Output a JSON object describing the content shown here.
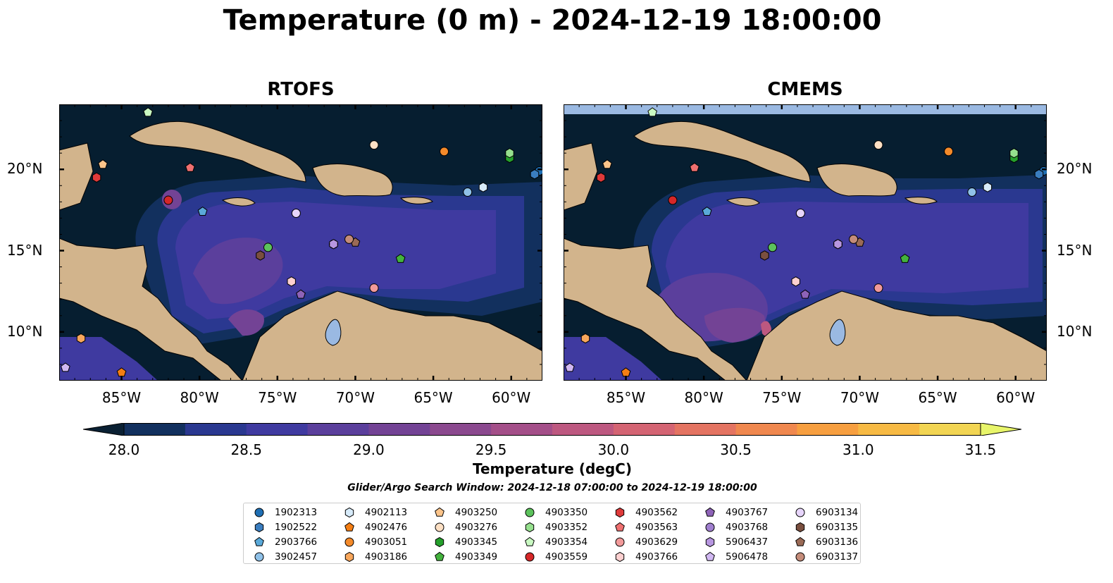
{
  "title": "Temperature (0 m) - 2024-12-19 18:00:00",
  "panels": [
    {
      "title": "RTOFS"
    },
    {
      "title": "CMEMS"
    }
  ],
  "map_extent": {
    "lon": [
      -89,
      -58
    ],
    "lat": [
      7,
      24
    ]
  },
  "lon_ticks": [
    {
      "value": -85,
      "label": "85°W"
    },
    {
      "value": -80,
      "label": "80°W"
    },
    {
      "value": -75,
      "label": "75°W"
    },
    {
      "value": -70,
      "label": "70°W"
    },
    {
      "value": -65,
      "label": "65°W"
    },
    {
      "value": -60,
      "label": "60°W"
    }
  ],
  "lat_ticks": [
    {
      "value": 10,
      "label": "10°N"
    },
    {
      "value": 15,
      "label": "15°N"
    },
    {
      "value": 20,
      "label": "20°N"
    }
  ],
  "colorbar": {
    "title": "Temperature (degC)",
    "range": [
      28.0,
      31.5
    ],
    "tick_labels": [
      "28.0",
      "28.5",
      "29.0",
      "29.5",
      "30.0",
      "30.5",
      "31.0",
      "31.5"
    ],
    "colors": [
      "#0a2033",
      "#12305e",
      "#2a3890",
      "#3f3aa0",
      "#5b3f9c",
      "#734395",
      "#8b498f",
      "#a44f89",
      "#bd5880",
      "#d46473",
      "#e47462",
      "#f0884f",
      "#f79f40",
      "#f7ba44",
      "#f2d553",
      "#e8f56a"
    ]
  },
  "search_window": "Glider/Argo Search Window: 2024-12-18 07:00:00 to 2024-12-19 18:00:00",
  "colors": {
    "ocean_dark": "#061e30",
    "land": "#d2b48c",
    "water_features": "#9ab9e2",
    "border": "#000000"
  },
  "floats": [
    {
      "id": "1902313",
      "shape": "circle",
      "color": "#1f6fb4",
      "lon": -58.2,
      "lat": 19.9
    },
    {
      "id": "1902522",
      "shape": "hexagon",
      "color": "#3a7dbf",
      "lon": -58.5,
      "lat": 19.7
    },
    {
      "id": "2903766",
      "shape": "pentagon",
      "color": "#5aa9d9",
      "lon": -79.8,
      "lat": 17.4
    },
    {
      "id": "3902457",
      "shape": "circle",
      "color": "#8fc1e8",
      "lon": -62.8,
      "lat": 18.6
    },
    {
      "id": "4902113",
      "shape": "hexagon",
      "color": "#d7ebfa",
      "lon": -61.8,
      "lat": 18.9
    },
    {
      "id": "4902476",
      "shape": "pentagon",
      "color": "#f47e14",
      "lon": -85.0,
      "lat": 7.5
    },
    {
      "id": "4903051",
      "shape": "circle",
      "color": "#f48a2a",
      "lon": -64.3,
      "lat": 21.1
    },
    {
      "id": "4903186",
      "shape": "hexagon",
      "color": "#f8a75c",
      "lon": -87.6,
      "lat": 9.6
    },
    {
      "id": "4903250",
      "shape": "pentagon",
      "color": "#fcc48a",
      "lon": -86.2,
      "lat": 20.3
    },
    {
      "id": "4903276",
      "shape": "circle",
      "color": "#fde0c4",
      "lon": -68.8,
      "lat": 21.5
    },
    {
      "id": "4903345",
      "shape": "hexagon",
      "color": "#25a02c",
      "lon": -60.1,
      "lat": 20.7
    },
    {
      "id": "4903349",
      "shape": "pentagon",
      "color": "#43b23d",
      "lon": -67.1,
      "lat": 14.5
    },
    {
      "id": "4903350",
      "shape": "circle",
      "color": "#5cc25c",
      "lon": -75.6,
      "lat": 15.2
    },
    {
      "id": "4903352",
      "shape": "hexagon",
      "color": "#96e08e",
      "lon": -60.1,
      "lat": 21.0
    },
    {
      "id": "4903354",
      "shape": "pentagon",
      "color": "#c9f9c2",
      "lon": -83.3,
      "lat": 23.5
    },
    {
      "id": "4903559",
      "shape": "circle",
      "color": "#d62728",
      "lon": -82.0,
      "lat": 18.1
    },
    {
      "id": "4903562",
      "shape": "hexagon",
      "color": "#df3a3a",
      "lon": -86.6,
      "lat": 19.5
    },
    {
      "id": "4903563",
      "shape": "pentagon",
      "color": "#ef7070",
      "lon": -80.6,
      "lat": 20.1
    },
    {
      "id": "4903629",
      "shape": "circle",
      "color": "#f29a9a",
      "lon": -68.8,
      "lat": 12.7
    },
    {
      "id": "4903766",
      "shape": "hexagon",
      "color": "#fdd0d0",
      "lon": -74.1,
      "lat": 13.1
    },
    {
      "id": "4903767",
      "shape": "pentagon",
      "color": "#8e63b8",
      "lon": -73.5,
      "lat": 12.3
    },
    {
      "id": "4903768",
      "shape": "circle",
      "color": "#a07fcf",
      "lon": -71.4,
      "lat": 15.4
    },
    {
      "id": "5906437",
      "shape": "hexagon",
      "color": "#b796e0",
      "lon": -71.4,
      "lat": 15.4
    },
    {
      "id": "5906478",
      "shape": "pentagon",
      "color": "#d1b8f2",
      "lon": -88.6,
      "lat": 7.8
    },
    {
      "id": "6903134",
      "shape": "circle",
      "color": "#e7d5fb",
      "lon": -73.8,
      "lat": 17.3
    },
    {
      "id": "6903135",
      "shape": "hexagon",
      "color": "#7a4f3f",
      "lon": -76.1,
      "lat": 14.7
    },
    {
      "id": "6903136",
      "shape": "pentagon",
      "color": "#9a6a56",
      "lon": -70.0,
      "lat": 15.5
    },
    {
      "id": "6903137",
      "shape": "circle",
      "color": "#c48c7a",
      "lon": -70.4,
      "lat": 15.7
    }
  ]
}
